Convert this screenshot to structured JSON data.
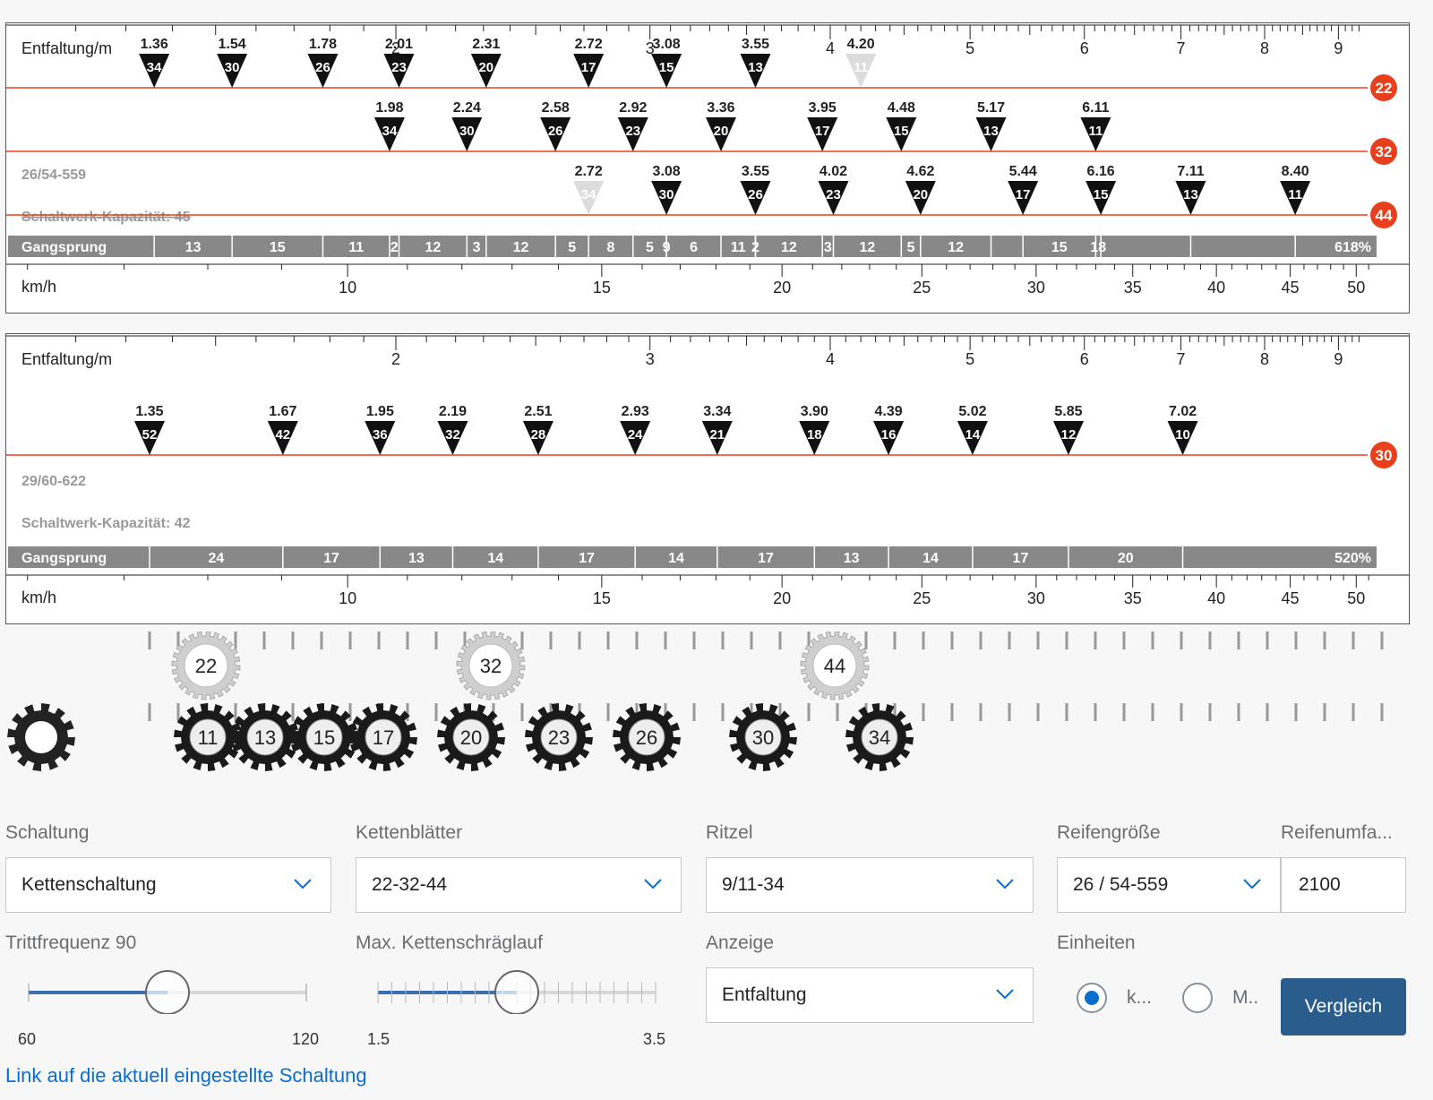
{
  "chart1": {
    "top_axis_label": "Entfaltung/m",
    "top_ticks": [
      "2",
      "3",
      "4",
      "5",
      "6",
      "7",
      "8",
      "9"
    ],
    "top_tick_values": [
      2,
      3,
      4,
      5,
      6,
      7,
      8,
      9
    ],
    "rings": [
      {
        "teeth": 22,
        "label": "22",
        "color": "#e8401c",
        "gears": [
          {
            "cog": "34",
            "value": "1.36",
            "dev": 1.36
          },
          {
            "cog": "30",
            "value": "1.54",
            "dev": 1.54
          },
          {
            "cog": "26",
            "value": "1.78",
            "dev": 1.78
          },
          {
            "cog": "23",
            "value": "2.01",
            "dev": 2.01
          },
          {
            "cog": "20",
            "value": "2.31",
            "dev": 2.31
          },
          {
            "cog": "17",
            "value": "2.72",
            "dev": 2.72
          },
          {
            "cog": "15",
            "value": "3.08",
            "dev": 3.08
          },
          {
            "cog": "13",
            "value": "3.55",
            "dev": 3.55
          },
          {
            "cog": "11",
            "value": "4.20",
            "dev": 4.2,
            "disabled": true
          }
        ]
      },
      {
        "teeth": 32,
        "label": "32",
        "color": "#e8401c",
        "gears": [
          {
            "cog": "34",
            "value": "1.98",
            "dev": 1.98
          },
          {
            "cog": "30",
            "value": "2.24",
            "dev": 2.24
          },
          {
            "cog": "26",
            "value": "2.58",
            "dev": 2.58
          },
          {
            "cog": "23",
            "value": "2.92",
            "dev": 2.92
          },
          {
            "cog": "20",
            "value": "3.36",
            "dev": 3.36
          },
          {
            "cog": "17",
            "value": "3.95",
            "dev": 3.95
          },
          {
            "cog": "15",
            "value": "4.48",
            "dev": 4.48
          },
          {
            "cog": "13",
            "value": "5.17",
            "dev": 5.17
          },
          {
            "cog": "11",
            "value": "6.11",
            "dev": 6.11
          }
        ]
      },
      {
        "teeth": 44,
        "label": "44",
        "color": "#e8401c",
        "gears": [
          {
            "cog": "34",
            "value": "2.72",
            "dev": 2.72,
            "disabled": true
          },
          {
            "cog": "30",
            "value": "3.08",
            "dev": 3.08
          },
          {
            "cog": "26",
            "value": "3.55",
            "dev": 3.55
          },
          {
            "cog": "23",
            "value": "4.02",
            "dev": 4.02
          },
          {
            "cog": "20",
            "value": "4.62",
            "dev": 4.62
          },
          {
            "cog": "17",
            "value": "5.44",
            "dev": 5.44
          },
          {
            "cog": "15",
            "value": "6.16",
            "dev": 6.16
          },
          {
            "cog": "13",
            "value": "7.11",
            "dev": 7.11
          },
          {
            "cog": "11",
            "value": "8.40",
            "dev": 8.4
          }
        ]
      }
    ],
    "tire_note": "26/54-559",
    "capacity_note": "Schaltwerk-Kapazität: 45",
    "gangsprung_label": "Gangsprung",
    "gangsprung": [
      "13",
      "15",
      "11",
      "2",
      "12",
      "3",
      "12",
      "5",
      "8",
      "5",
      "9",
      "6",
      "11",
      "2",
      "12",
      "3",
      "12",
      "5",
      "12",
      "",
      "15",
      "18"
    ],
    "gangsprung_total": "618%",
    "bottom_axis_label": "km/h",
    "kmh_ticks": [
      "10",
      "15",
      "20",
      "25",
      "30",
      "35",
      "40",
      "45",
      "50"
    ],
    "kmh_tick_values": [
      10,
      15,
      20,
      25,
      30,
      35,
      40,
      45,
      50
    ]
  },
  "chart2": {
    "top_axis_label": "Entfaltung/m",
    "top_ticks": [
      "2",
      "3",
      "4",
      "5",
      "6",
      "7",
      "8",
      "9"
    ],
    "top_tick_values": [
      2,
      3,
      4,
      5,
      6,
      7,
      8,
      9
    ],
    "rings": [
      {
        "teeth": 30,
        "label": "30",
        "color": "#e8401c",
        "gears": [
          {
            "cog": "52",
            "value": "1.35",
            "dev": 1.35
          },
          {
            "cog": "42",
            "value": "1.67",
            "dev": 1.67
          },
          {
            "cog": "36",
            "value": "1.95",
            "dev": 1.95
          },
          {
            "cog": "32",
            "value": "2.19",
            "dev": 2.19
          },
          {
            "cog": "28",
            "value": "2.51",
            "dev": 2.51
          },
          {
            "cog": "24",
            "value": "2.93",
            "dev": 2.93
          },
          {
            "cog": "21",
            "value": "3.34",
            "dev": 3.34
          },
          {
            "cog": "18",
            "value": "3.90",
            "dev": 3.9
          },
          {
            "cog": "16",
            "value": "4.39",
            "dev": 4.39
          },
          {
            "cog": "14",
            "value": "5.02",
            "dev": 5.02
          },
          {
            "cog": "12",
            "value": "5.85",
            "dev": 5.85
          },
          {
            "cog": "10",
            "value": "7.02",
            "dev": 7.02
          }
        ]
      }
    ],
    "tire_note": "29/60-622",
    "capacity_note": "Schaltwerk-Kapazität: 42",
    "gangsprung_label": "Gangsprung",
    "gangsprung": [
      "24",
      "17",
      "13",
      "14",
      "17",
      "14",
      "17",
      "13",
      "14",
      "17",
      "20"
    ],
    "gangsprung_total": "520%",
    "bottom_axis_label": "km/h",
    "kmh_ticks": [
      "10",
      "15",
      "20",
      "25",
      "30",
      "35",
      "40",
      "45",
      "50"
    ],
    "kmh_tick_values": [
      10,
      15,
      20,
      25,
      30,
      35,
      40,
      45,
      50
    ]
  },
  "gears_visual": {
    "chainrings": [
      "22",
      "32",
      "44"
    ],
    "cogs": [
      "11",
      "13",
      "15",
      "17",
      "20",
      "23",
      "26",
      "30",
      "34"
    ]
  },
  "form": {
    "schaltung": {
      "label": "Schaltung",
      "value": "Kettenschaltung"
    },
    "kettenblaetter": {
      "label": "Kettenblätter",
      "value": "22-32-44"
    },
    "ritzel": {
      "label": "Ritzel",
      "value": "9/11-34"
    },
    "reifengroesse": {
      "label": "Reifengröße",
      "value": "26 / 54-559"
    },
    "reifenumfang": {
      "label": "Reifenumfa...",
      "value": "2100"
    },
    "trittfrequenz": {
      "label": "Trittfrequenz 90",
      "min": "60",
      "max": "120",
      "value": 90
    },
    "kettenschraeglauf": {
      "label": "Max. Kettenschräglauf",
      "min": "1.5",
      "max": "3.5",
      "value": 2.5
    },
    "anzeige": {
      "label": "Anzeige",
      "value": "Entfaltung"
    },
    "einheiten": {
      "label": "Einheiten",
      "option1": "k...",
      "option2": "M..",
      "selected": "option1"
    },
    "compare_button": "Vergleich"
  },
  "link_text": "Link auf die aktuell eingestellte Schaltung"
}
